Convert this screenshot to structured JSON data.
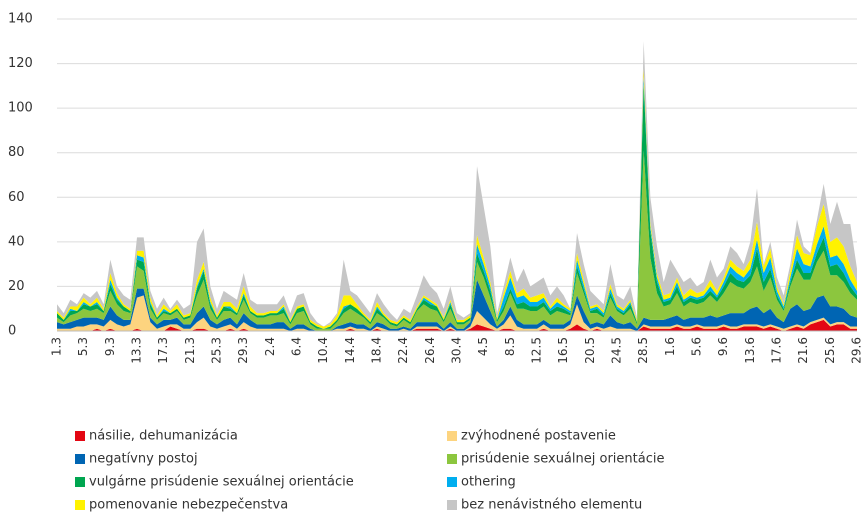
{
  "chart_data": {
    "type": "stacked_area",
    "categories": [
      "1.3",
      null,
      null,
      null,
      "5.3",
      null,
      null,
      null,
      "9.3",
      null,
      null,
      null,
      "13.3",
      null,
      null,
      null,
      "17.3",
      null,
      null,
      null,
      "21.3",
      null,
      null,
      null,
      "25.3",
      null,
      null,
      null,
      "29.3",
      null,
      null,
      null,
      "2.4",
      null,
      null,
      null,
      "6.4",
      null,
      null,
      null,
      "10.4",
      null,
      null,
      null,
      "14.4",
      null,
      null,
      null,
      "18.4",
      null,
      null,
      null,
      "22.4",
      null,
      null,
      null,
      "26.4",
      null,
      null,
      null,
      "30.4",
      null,
      null,
      null,
      "4.5",
      null,
      null,
      null,
      "8.5",
      null,
      null,
      null,
      "12.5",
      null,
      null,
      null,
      "16.5",
      null,
      null,
      null,
      "20.5",
      null,
      null,
      null,
      "24.5",
      null,
      null,
      null,
      "28.5",
      null,
      null,
      null,
      "1.6",
      null,
      null,
      null,
      "5.6",
      null,
      null,
      null,
      "9.6",
      null,
      null,
      null,
      "13.6",
      null,
      null,
      null,
      "17.6",
      null,
      null,
      null,
      "21.6",
      null,
      null,
      null,
      "25.6",
      null,
      null,
      null,
      "29.6"
    ],
    "series": [
      {
        "name": "násilie, dehumanizácia",
        "color": "#e30613",
        "values": [
          0,
          0,
          0,
          0,
          0,
          0,
          1,
          0,
          1,
          0,
          0,
          0,
          1,
          0,
          0,
          0,
          0,
          2,
          1,
          0,
          0,
          1,
          1,
          0,
          0,
          0,
          1,
          0,
          1,
          0,
          0,
          0,
          0,
          0,
          0,
          0,
          0,
          0,
          0,
          0,
          0,
          0,
          0,
          0,
          1,
          0,
          0,
          0,
          1,
          0,
          0,
          0,
          0,
          0,
          1,
          1,
          1,
          1,
          0,
          1,
          0,
          0,
          1,
          3,
          2,
          1,
          0,
          1,
          1,
          0,
          0,
          0,
          0,
          1,
          0,
          0,
          0,
          1,
          3,
          1,
          0,
          1,
          0,
          0,
          0,
          0,
          0,
          0,
          2,
          1,
          1,
          1,
          1,
          2,
          1,
          1,
          2,
          1,
          1,
          1,
          2,
          1,
          1,
          2,
          2,
          2,
          1,
          2,
          1,
          0,
          1,
          2,
          1,
          3,
          4,
          5,
          2,
          3,
          3,
          1,
          1
        ]
      },
      {
        "name": "zvýhodnené postavenie",
        "color": "#fdd47f",
        "values": [
          1,
          1,
          1,
          2,
          2,
          3,
          2,
          2,
          4,
          3,
          2,
          3,
          14,
          16,
          4,
          1,
          2,
          1,
          2,
          1,
          1,
          3,
          5,
          2,
          1,
          2,
          2,
          1,
          3,
          2,
          1,
          1,
          1,
          1,
          1,
          0,
          1,
          1,
          0,
          0,
          0,
          0,
          1,
          1,
          1,
          1,
          1,
          0,
          1,
          1,
          0,
          0,
          1,
          0,
          1,
          1,
          1,
          1,
          0,
          1,
          0,
          0,
          1,
          6,
          4,
          2,
          1,
          2,
          6,
          2,
          1,
          1,
          1,
          2,
          1,
          1,
          1,
          2,
          9,
          3,
          1,
          1,
          1,
          2,
          1,
          1,
          1,
          0,
          1,
          1,
          1,
          1,
          1,
          1,
          1,
          1,
          1,
          1,
          1,
          1,
          1,
          1,
          1,
          1,
          1,
          1,
          1,
          1,
          1,
          1,
          1,
          1,
          1,
          1,
          1,
          1,
          1,
          1,
          1,
          1,
          1
        ]
      },
      {
        "name": "negatívny postoj",
        "color": "#0065b3",
        "values": [
          3,
          2,
          3,
          3,
          4,
          3,
          3,
          3,
          6,
          4,
          3,
          2,
          4,
          3,
          2,
          2,
          3,
          2,
          3,
          2,
          2,
          4,
          5,
          3,
          2,
          3,
          3,
          2,
          4,
          3,
          2,
          2,
          2,
          3,
          3,
          1,
          2,
          2,
          1,
          0,
          0,
          0,
          1,
          2,
          2,
          2,
          2,
          1,
          2,
          2,
          1,
          1,
          1,
          1,
          2,
          2,
          2,
          2,
          1,
          2,
          1,
          1,
          2,
          14,
          10,
          6,
          1,
          2,
          4,
          3,
          2,
          2,
          2,
          2,
          2,
          2,
          2,
          2,
          4,
          5,
          2,
          2,
          2,
          5,
          3,
          2,
          3,
          1,
          3,
          3,
          3,
          3,
          4,
          4,
          3,
          4,
          3,
          4,
          5,
          4,
          4,
          6,
          6,
          5,
          7,
          8,
          6,
          7,
          4,
          3,
          8,
          9,
          7,
          6,
          10,
          10,
          8,
          7,
          6,
          5,
          4
        ]
      },
      {
        "name": "prisúdenie sexuálnej orientácie",
        "color": "#8cc63e",
        "values": [
          2,
          1,
          3,
          3,
          4,
          3,
          4,
          3,
          7,
          5,
          4,
          3,
          10,
          8,
          4,
          2,
          3,
          2,
          3,
          2,
          3,
          8,
          12,
          5,
          2,
          4,
          3,
          4,
          6,
          3,
          3,
          3,
          4,
          3,
          4,
          2,
          5,
          6,
          2,
          1,
          1,
          1,
          2,
          5,
          6,
          5,
          3,
          2,
          4,
          3,
          2,
          1,
          3,
          2,
          5,
          8,
          6,
          5,
          3,
          6,
          2,
          2,
          1,
          8,
          8,
          6,
          2,
          4,
          6,
          5,
          7,
          6,
          6,
          6,
          4,
          6,
          5,
          2,
          10,
          8,
          5,
          4,
          3,
          8,
          5,
          4,
          6,
          2,
          75,
          28,
          12,
          6,
          6,
          10,
          6,
          7,
          6,
          7,
          9,
          7,
          10,
          14,
          12,
          11,
          12,
          18,
          10,
          14,
          8,
          5,
          10,
          16,
          14,
          13,
          16,
          20,
          14,
          14,
          12,
          10,
          8
        ]
      },
      {
        "name": "vulgárne prisúdenie sexuálnej orientácie",
        "color": "#00a650",
        "values": [
          2,
          1,
          2,
          1,
          2,
          2,
          2,
          1,
          3,
          2,
          2,
          1,
          3,
          4,
          2,
          1,
          1,
          1,
          1,
          1,
          1,
          3,
          4,
          2,
          1,
          2,
          1,
          1,
          2,
          1,
          1,
          1,
          1,
          1,
          2,
          1,
          2,
          2,
          1,
          1,
          0,
          1,
          1,
          2,
          2,
          2,
          1,
          1,
          2,
          1,
          1,
          1,
          1,
          1,
          1,
          2,
          2,
          2,
          1,
          2,
          1,
          1,
          1,
          4,
          3,
          3,
          1,
          2,
          2,
          2,
          3,
          2,
          2,
          2,
          2,
          2,
          2,
          1,
          3,
          2,
          1,
          2,
          1,
          2,
          1,
          1,
          2,
          1,
          30,
          12,
          5,
          2,
          2,
          3,
          2,
          2,
          2,
          2,
          2,
          2,
          3,
          4,
          3,
          3,
          3,
          8,
          4,
          4,
          2,
          1,
          2,
          4,
          3,
          3,
          4,
          6,
          4,
          5,
          4,
          3,
          2
        ]
      },
      {
        "name": "othering",
        "color": "#00aeef",
        "values": [
          0,
          0,
          1,
          0,
          1,
          0,
          1,
          0,
          2,
          1,
          0,
          0,
          2,
          2,
          1,
          0,
          1,
          0,
          0,
          0,
          0,
          1,
          1,
          1,
          0,
          0,
          1,
          0,
          1,
          0,
          0,
          0,
          0,
          0,
          1,
          0,
          0,
          0,
          0,
          0,
          0,
          0,
          0,
          1,
          0,
          0,
          0,
          0,
          1,
          0,
          0,
          0,
          0,
          0,
          0,
          1,
          1,
          0,
          0,
          1,
          0,
          0,
          0,
          4,
          3,
          2,
          0,
          4,
          5,
          3,
          3,
          2,
          2,
          2,
          1,
          2,
          1,
          1,
          3,
          2,
          1,
          1,
          1,
          2,
          1,
          1,
          1,
          0,
          3,
          2,
          2,
          1,
          1,
          2,
          1,
          1,
          1,
          1,
          2,
          1,
          2,
          3,
          3,
          2,
          3,
          4,
          4,
          5,
          2,
          1,
          2,
          5,
          4,
          3,
          4,
          5,
          4,
          4,
          4,
          3,
          2
        ]
      },
      {
        "name": "pomenovanie nebezpečenstva",
        "color": "#fff200",
        "values": [
          1,
          1,
          1,
          2,
          2,
          1,
          2,
          1,
          3,
          2,
          1,
          1,
          2,
          3,
          2,
          1,
          2,
          1,
          2,
          1,
          1,
          3,
          3,
          2,
          1,
          2,
          2,
          2,
          3,
          2,
          1,
          1,
          1,
          1,
          1,
          1,
          1,
          1,
          1,
          1,
          1,
          1,
          2,
          5,
          4,
          2,
          1,
          1,
          2,
          1,
          1,
          1,
          1,
          1,
          1,
          1,
          1,
          1,
          1,
          1,
          1,
          1,
          1,
          4,
          3,
          2,
          1,
          2,
          3,
          2,
          3,
          2,
          3,
          2,
          1,
          2,
          1,
          1,
          3,
          2,
          1,
          1,
          1,
          2,
          1,
          1,
          1,
          1,
          4,
          2,
          2,
          2,
          2,
          2,
          2,
          3,
          2,
          2,
          3,
          2,
          2,
          3,
          3,
          3,
          4,
          8,
          3,
          4,
          2,
          1,
          3,
          6,
          5,
          5,
          8,
          10,
          7,
          8,
          8,
          6,
          4
        ]
      },
      {
        "name": "bez nenávistného elementu",
        "color": "#c6c6c6",
        "values": [
          3,
          2,
          3,
          1,
          2,
          3,
          3,
          2,
          6,
          3,
          4,
          4,
          6,
          6,
          3,
          3,
          3,
          1,
          2,
          3,
          4,
          17,
          15,
          5,
          3,
          5,
          3,
          4,
          6,
          3,
          4,
          4,
          3,
          3,
          4,
          3,
          5,
          5,
          3,
          1,
          0,
          1,
          1,
          16,
          2,
          4,
          4,
          3,
          4,
          4,
          3,
          1,
          3,
          3,
          5,
          9,
          6,
          5,
          4,
          6,
          3,
          1,
          1,
          31,
          23,
          16,
          2,
          3,
          6,
          5,
          9,
          5,
          6,
          7,
          5,
          5,
          4,
          0,
          9,
          7,
          7,
          3,
          3,
          9,
          4,
          4,
          6,
          1,
          12,
          11,
          12,
          6,
          15,
          3,
          6,
          5,
          3,
          4,
          9,
          6,
          4,
          6,
          6,
          3,
          8,
          15,
          1,
          3,
          4,
          4,
          3,
          7,
          3,
          1,
          3,
          9,
          8,
          16,
          10,
          19,
          6
        ]
      }
    ],
    "ylim": [
      0,
      140
    ],
    "yticks": [
      0,
      20,
      40,
      60,
      80,
      100,
      120,
      140
    ],
    "grid": true
  }
}
